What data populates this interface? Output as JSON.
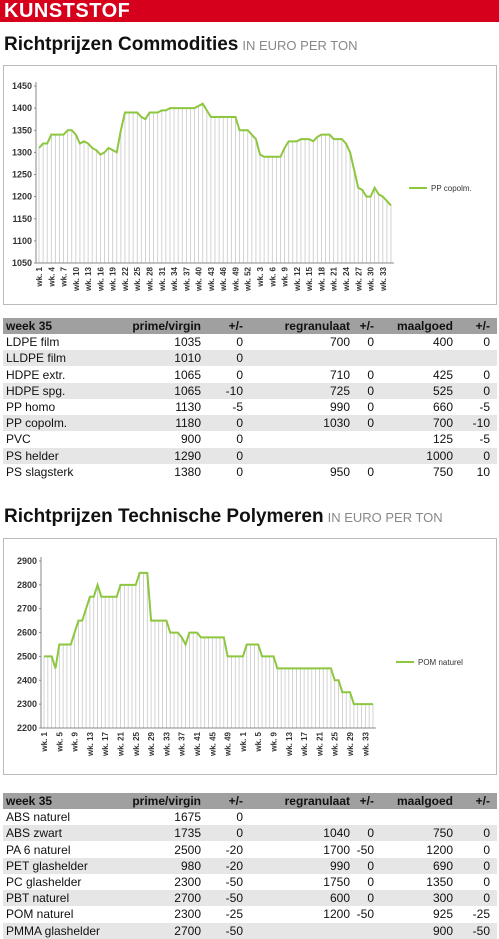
{
  "header": {
    "title": "KUNSTSTOF"
  },
  "sections": [
    {
      "title": "Richtprijzen Commodities",
      "unit": "IN EURO PER TON",
      "table": {
        "columns": [
          "week 35",
          "prime/virgin",
          "+/-",
          "regranulaat",
          "+/-",
          "maalgoed",
          "+/-"
        ],
        "rows": [
          [
            "LDPE film",
            1035,
            0,
            700,
            0,
            400,
            0
          ],
          [
            "LLDPE film",
            1010,
            0,
            null,
            null,
            null,
            null
          ],
          [
            "HDPE extr.",
            1065,
            0,
            710,
            0,
            425,
            0
          ],
          [
            "HDPE spg.",
            1065,
            -10,
            725,
            0,
            525,
            0
          ],
          [
            "PP homo",
            1130,
            -5,
            990,
            0,
            660,
            -5
          ],
          [
            "PP copolm.",
            1180,
            0,
            1030,
            0,
            700,
            -10
          ],
          [
            "PVC",
            900,
            0,
            null,
            null,
            125,
            -5
          ],
          [
            "PS helder",
            1290,
            0,
            null,
            null,
            1000,
            0
          ],
          [
            "PS slagsterk",
            1380,
            0,
            950,
            0,
            750,
            10
          ]
        ]
      }
    },
    {
      "title": "Richtprijzen Technische Polymeren",
      "unit": "IN EURO PER TON",
      "table": {
        "columns": [
          "week 35",
          "prime/virgin",
          "+/-",
          "regranulaat",
          "+/-",
          "maalgoed",
          "+/-"
        ],
        "rows": [
          [
            "ABS naturel",
            1675,
            0,
            null,
            null,
            null,
            null
          ],
          [
            "ABS zwart",
            1735,
            0,
            1040,
            0,
            750,
            0
          ],
          [
            "PA 6 naturel",
            2500,
            -20,
            1700,
            -50,
            1200,
            0
          ],
          [
            "PET glashelder",
            980,
            -20,
            990,
            0,
            690,
            0
          ],
          [
            "PC glashelder",
            2300,
            -50,
            1750,
            0,
            1350,
            0
          ],
          [
            "PBT naturel",
            2700,
            -50,
            600,
            0,
            300,
            0
          ],
          [
            "POM naturel",
            2300,
            -25,
            1200,
            -50,
            925,
            -25
          ],
          [
            "PMMA glashelder",
            2700,
            -50,
            null,
            null,
            900,
            -50
          ]
        ]
      }
    }
  ],
  "chart_data": [
    {
      "type": "line",
      "drop_lines": true,
      "legend": "right",
      "categories": [
        "wk. 1",
        null,
        null,
        "wk. 4",
        null,
        null,
        "wk. 7",
        null,
        null,
        "wk. 10",
        null,
        null,
        "wk. 13",
        null,
        null,
        "wk. 16",
        null,
        null,
        "wk. 19",
        null,
        null,
        "wk. 22",
        null,
        null,
        "wk. 25",
        null,
        null,
        "wk. 28",
        null,
        null,
        "wk. 31",
        null,
        null,
        "wk. 34",
        null,
        null,
        "wk. 37",
        null,
        null,
        "wk. 40",
        null,
        null,
        "wk. 43",
        null,
        null,
        "wk. 46",
        null,
        null,
        "wk. 49",
        null,
        null,
        "wk. 52",
        null,
        null,
        "wk. 3",
        null,
        null,
        "wk. 6",
        null,
        null,
        "wk. 9",
        null,
        null,
        "wk. 12",
        null,
        null,
        "wk. 15",
        null,
        null,
        "wk. 18",
        null,
        null,
        "wk. 21",
        null,
        null,
        "wk. 24",
        null,
        null,
        "wk. 27",
        null,
        null,
        "wk. 30",
        null,
        null,
        "wk. 33",
        null,
        null
      ],
      "series": [
        {
          "name": "PP copolm.",
          "color": "#8dc63f",
          "values": [
            1310,
            1320,
            1320,
            1340,
            1340,
            1340,
            1340,
            1350,
            1350,
            1340,
            1320,
            1325,
            1320,
            1310,
            1305,
            1295,
            1300,
            1310,
            1305,
            1300,
            1350,
            1390,
            1390,
            1390,
            1390,
            1380,
            1375,
            1390,
            1390,
            1390,
            1395,
            1395,
            1400,
            1400,
            1400,
            1400,
            1400,
            1400,
            1400,
            1405,
            1410,
            1395,
            1380,
            1380,
            1380,
            1380,
            1380,
            1380,
            1380,
            1350,
            1350,
            1350,
            1340,
            1330,
            1295,
            1290,
            1290,
            1290,
            1290,
            1290,
            1310,
            1325,
            1325,
            1325,
            1330,
            1330,
            1330,
            1325,
            1335,
            1340,
            1340,
            1340,
            1330,
            1330,
            1330,
            1320,
            1300,
            1260,
            1220,
            1215,
            1200,
            1200,
            1220,
            1205,
            1200,
            1190,
            1180
          ]
        }
      ],
      "ylim": [
        1050,
        1450
      ],
      "yticks": [
        1050,
        1100,
        1150,
        1200,
        1250,
        1300,
        1350,
        1400,
        1450
      ]
    },
    {
      "type": "line",
      "drop_lines": true,
      "legend": "right",
      "categories": [
        "wk. 1",
        null,
        null,
        null,
        "wk. 5",
        null,
        null,
        null,
        "wk. 9",
        null,
        null,
        null,
        "wk. 13",
        null,
        null,
        null,
        "wk. 17",
        null,
        null,
        null,
        "wk. 21",
        null,
        null,
        null,
        "wk. 25",
        null,
        null,
        null,
        "wk. 29",
        null,
        null,
        null,
        "wk. 33",
        null,
        null,
        null,
        "wk. 37",
        null,
        null,
        null,
        "wk. 41",
        null,
        null,
        null,
        "wk. 45",
        null,
        null,
        null,
        "wk. 49",
        null,
        null,
        null,
        "wk. 1",
        null,
        null,
        null,
        "wk. 5",
        null,
        null,
        null,
        "wk. 9",
        null,
        null,
        null,
        "wk. 13",
        null,
        null,
        null,
        "wk. 17",
        null,
        null,
        null,
        "wk. 21",
        null,
        null,
        null,
        "wk. 25",
        null,
        null,
        null,
        "wk. 29",
        null,
        null,
        null,
        "wk. 33",
        null,
        null
      ],
      "series": [
        {
          "name": "POM naturel",
          "color": "#8dc63f",
          "values": [
            2500,
            2500,
            2500,
            2450,
            2550,
            2550,
            2550,
            2550,
            2600,
            2650,
            2650,
            2700,
            2750,
            2750,
            2800,
            2750,
            2750,
            2750,
            2750,
            2750,
            2800,
            2800,
            2800,
            2800,
            2800,
            2850,
            2850,
            2850,
            2650,
            2650,
            2650,
            2650,
            2650,
            2600,
            2600,
            2600,
            2580,
            2550,
            2600,
            2600,
            2600,
            2580,
            2580,
            2580,
            2580,
            2580,
            2580,
            2580,
            2500,
            2500,
            2500,
            2500,
            2500,
            2550,
            2550,
            2550,
            2550,
            2500,
            2500,
            2500,
            2500,
            2450,
            2450,
            2450,
            2450,
            2450,
            2450,
            2450,
            2450,
            2450,
            2450,
            2450,
            2450,
            2450,
            2450,
            2450,
            2400,
            2400,
            2350,
            2350,
            2350,
            2300,
            2300,
            2300,
            2300,
            2300,
            2300
          ]
        }
      ],
      "ylim": [
        2200,
        2900
      ],
      "yticks": [
        2200,
        2300,
        2400,
        2500,
        2600,
        2700,
        2800,
        2900
      ]
    }
  ]
}
